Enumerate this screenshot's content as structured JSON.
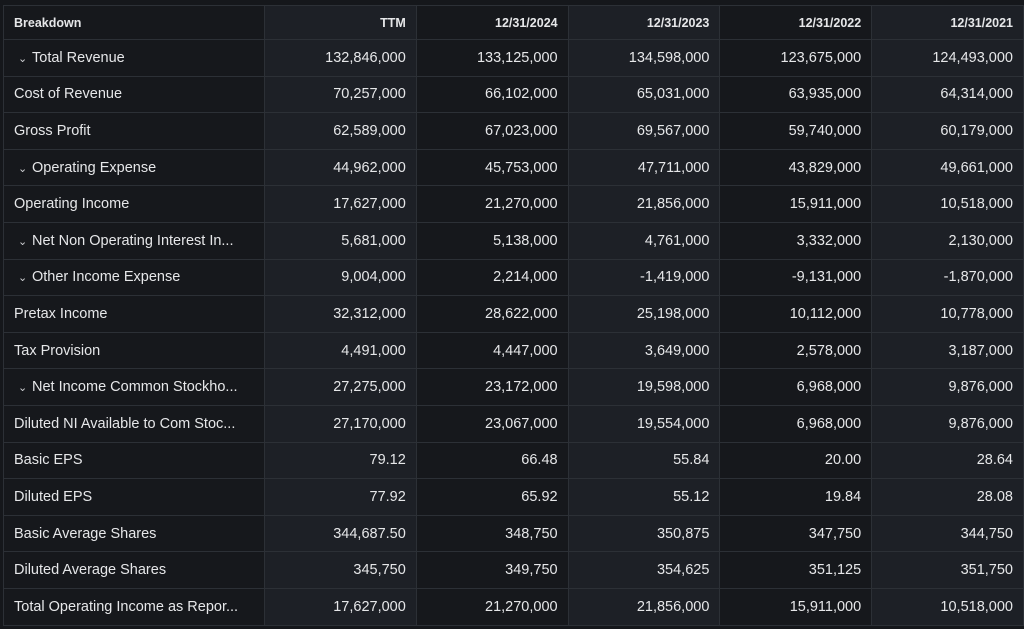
{
  "headers": [
    "Breakdown",
    "TTM",
    "12/31/2024",
    "12/31/2023",
    "12/31/2022",
    "12/31/2021"
  ],
  "rows": [
    {
      "label": "Total Revenue",
      "expandable": true,
      "values": [
        "132,846,000",
        "133,125,000",
        "134,598,000",
        "123,675,000",
        "124,493,000"
      ]
    },
    {
      "label": "Cost of Revenue",
      "expandable": false,
      "values": [
        "70,257,000",
        "66,102,000",
        "65,031,000",
        "63,935,000",
        "64,314,000"
      ]
    },
    {
      "label": "Gross Profit",
      "expandable": false,
      "values": [
        "62,589,000",
        "67,023,000",
        "69,567,000",
        "59,740,000",
        "60,179,000"
      ]
    },
    {
      "label": "Operating Expense",
      "expandable": true,
      "values": [
        "44,962,000",
        "45,753,000",
        "47,711,000",
        "43,829,000",
        "49,661,000"
      ]
    },
    {
      "label": "Operating Income",
      "expandable": false,
      "values": [
        "17,627,000",
        "21,270,000",
        "21,856,000",
        "15,911,000",
        "10,518,000"
      ]
    },
    {
      "label": "Net Non Operating Interest In...",
      "expandable": true,
      "values": [
        "5,681,000",
        "5,138,000",
        "4,761,000",
        "3,332,000",
        "2,130,000"
      ]
    },
    {
      "label": "Other Income Expense",
      "expandable": true,
      "values": [
        "9,004,000",
        "2,214,000",
        "-1,419,000",
        "-9,131,000",
        "-1,870,000"
      ]
    },
    {
      "label": "Pretax Income",
      "expandable": false,
      "values": [
        "32,312,000",
        "28,622,000",
        "25,198,000",
        "10,112,000",
        "10,778,000"
      ]
    },
    {
      "label": "Tax Provision",
      "expandable": false,
      "values": [
        "4,491,000",
        "4,447,000",
        "3,649,000",
        "2,578,000",
        "3,187,000"
      ]
    },
    {
      "label": "Net Income Common Stockho...",
      "expandable": true,
      "values": [
        "27,275,000",
        "23,172,000",
        "19,598,000",
        "6,968,000",
        "9,876,000"
      ]
    },
    {
      "label": "Diluted NI Available to Com Stoc...",
      "expandable": false,
      "values": [
        "27,170,000",
        "23,067,000",
        "19,554,000",
        "6,968,000",
        "9,876,000"
      ]
    },
    {
      "label": "Basic EPS",
      "expandable": false,
      "values": [
        "79.12",
        "66.48",
        "55.84",
        "20.00",
        "28.64"
      ]
    },
    {
      "label": "Diluted EPS",
      "expandable": false,
      "values": [
        "77.92",
        "65.92",
        "55.12",
        "19.84",
        "28.08"
      ]
    },
    {
      "label": "Basic Average Shares",
      "expandable": false,
      "values": [
        "344,687.50",
        "348,750",
        "350,875",
        "347,750",
        "344,750"
      ]
    },
    {
      "label": "Diluted Average Shares",
      "expandable": false,
      "values": [
        "345,750",
        "349,750",
        "354,625",
        "351,125",
        "351,750"
      ]
    },
    {
      "label": "Total Operating Income as Repor...",
      "expandable": false,
      "values": [
        "17,627,000",
        "21,270,000",
        "21,856,000",
        "15,911,000",
        "10,518,000"
      ]
    }
  ],
  "icons": {
    "expand": "chevron-down-icon"
  }
}
